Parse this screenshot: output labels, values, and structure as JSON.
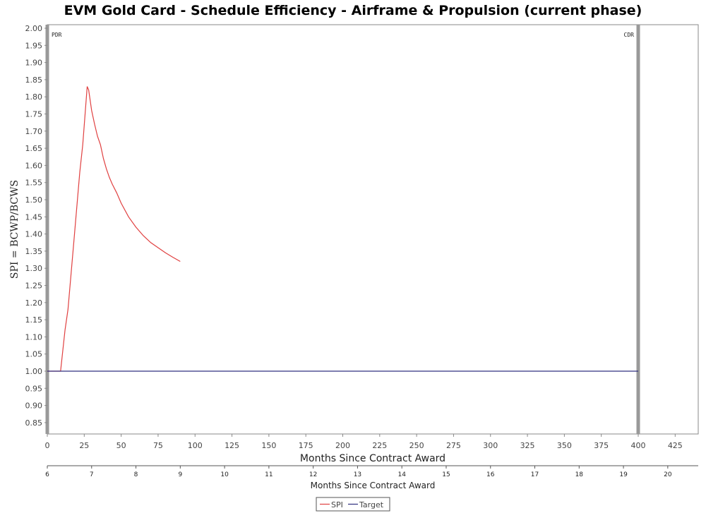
{
  "chart_data": {
    "type": "line",
    "title": "EVM Gold Card - Schedule Efficiency - Airframe & Propulsion (current phase)",
    "xlabel": "Months Since Contract Award",
    "ylabel": "SPI = BCWP/BCWS",
    "xlim": [
      0,
      425
    ],
    "ylim": [
      0.82,
      2.01
    ],
    "x_ticks": [
      "0",
      "25",
      "50",
      "75",
      "100",
      "125",
      "150",
      "175",
      "200",
      "225",
      "250",
      "275",
      "300",
      "325",
      "350",
      "375",
      "400",
      "425"
    ],
    "y_ticks": [
      "0.85",
      "0.90",
      "0.95",
      "1.00",
      "1.05",
      "1.10",
      "1.15",
      "1.20",
      "1.25",
      "1.30",
      "1.35",
      "1.40",
      "1.45",
      "1.50",
      "1.55",
      "1.60",
      "1.65",
      "1.70",
      "1.75",
      "1.80",
      "1.85",
      "1.90",
      "1.95",
      "2.00"
    ],
    "secondary_axis": {
      "label": "Months Since Contract Award",
      "ticks": [
        {
          "label": "6",
          "x": 0
        },
        {
          "label": "7",
          "x": 30
        },
        {
          "label": "8",
          "x": 60
        },
        {
          "label": "9",
          "x": 90
        },
        {
          "label": "10",
          "x": 120
        },
        {
          "label": "11",
          "x": 150
        },
        {
          "label": "12",
          "x": 180
        },
        {
          "label": "13",
          "x": 210
        },
        {
          "label": "14",
          "x": 240
        },
        {
          "label": "15",
          "x": 270
        },
        {
          "label": "16",
          "x": 300
        },
        {
          "label": "17",
          "x": 330
        },
        {
          "label": "18",
          "x": 360
        },
        {
          "label": "19",
          "x": 390
        },
        {
          "label": "20",
          "x": 420
        }
      ]
    },
    "markers": [
      {
        "label": "PDR",
        "x": 0
      },
      {
        "label": "CDR",
        "x": 400
      }
    ],
    "series": [
      {
        "name": "SPI",
        "color": "#e04040",
        "x": [
          0,
          9,
          12,
          14,
          18,
          22,
          24,
          27,
          28,
          30,
          32,
          34,
          36,
          38,
          40,
          42,
          44,
          47,
          50,
          55,
          60,
          65,
          70,
          75,
          80,
          85,
          90
        ],
        "y": [
          1.0,
          1.0,
          1.12,
          1.18,
          1.38,
          1.58,
          1.66,
          1.83,
          1.82,
          1.76,
          1.72,
          1.685,
          1.66,
          1.62,
          1.59,
          1.565,
          1.545,
          1.52,
          1.49,
          1.45,
          1.42,
          1.395,
          1.375,
          1.36,
          1.345,
          1.332,
          1.32
        ]
      },
      {
        "name": "Target",
        "color": "#303080",
        "x": [
          0,
          400
        ],
        "y": [
          1.0,
          1.0
        ]
      }
    ],
    "legend": {
      "position": "bottom-center",
      "entries": [
        "SPI",
        "Target"
      ]
    },
    "grid": false
  }
}
